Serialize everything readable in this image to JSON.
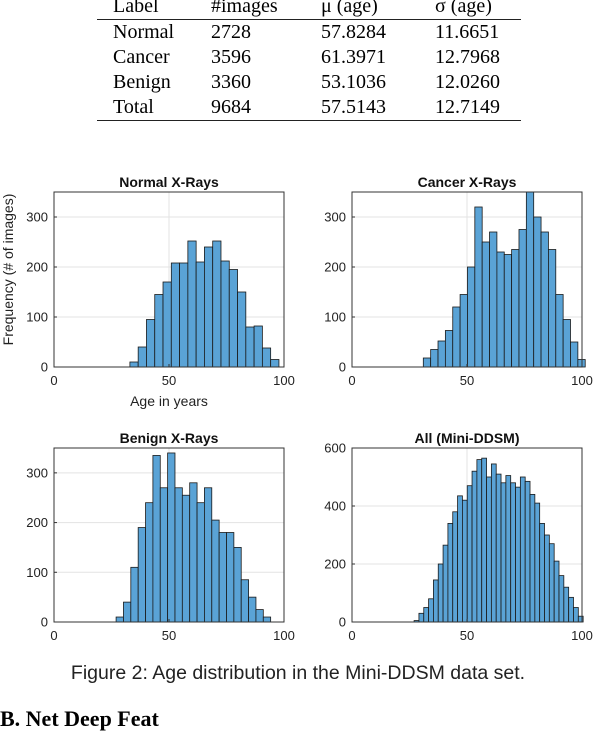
{
  "table": {
    "headers": [
      "Label",
      "#images",
      "μ (age)",
      "σ (age)"
    ],
    "rows": [
      [
        "Normal",
        "2728",
        "57.8284",
        "11.6651"
      ],
      [
        "Cancer",
        "3596",
        "61.3971",
        "12.7968"
      ],
      [
        "Benign",
        "3360",
        "53.1036",
        "12.0260"
      ],
      [
        "Total",
        "9684",
        "57.5143",
        "12.7149"
      ]
    ]
  },
  "caption": "Figure 2: Age distribution in the Mini-DDSM data set.",
  "next_heading": "B. Net Deep Feat",
  "colors": {
    "bar_fill": "#5aa3d6",
    "bar_edge": "#1a1a1a",
    "grid": "#e3e3e3",
    "axis": "#333333"
  },
  "chart_data": [
    {
      "type": "bar",
      "title": "Normal X-Rays",
      "xlabel": "Age in years",
      "ylabel": "Frequency (# of images)",
      "xlim": [
        0,
        100
      ],
      "ylim": [
        0,
        350
      ],
      "xticks": [
        0,
        50,
        100
      ],
      "yticks": [
        0,
        100,
        200,
        300
      ],
      "grid": true,
      "bin_start": 33,
      "bin_width": 3.6,
      "values": [
        10,
        40,
        95,
        145,
        170,
        208,
        208,
        252,
        210,
        240,
        252,
        212,
        195,
        150,
        80,
        82,
        38,
        15
      ]
    },
    {
      "type": "bar",
      "title": "Cancer X-Rays",
      "xlabel": "",
      "ylabel": "",
      "xlim": [
        0,
        100
      ],
      "ylim": [
        0,
        350
      ],
      "xticks": [
        0,
        50,
        100
      ],
      "yticks": [
        0,
        100,
        200,
        300
      ],
      "grid": true,
      "bin_start": 31,
      "bin_width": 3.2,
      "values": [
        18,
        35,
        52,
        73,
        120,
        145,
        200,
        320,
        250,
        270,
        230,
        225,
        235,
        275,
        350,
        300,
        270,
        235,
        145,
        95,
        50,
        15
      ]
    },
    {
      "type": "bar",
      "title": "Benign X-Rays",
      "xlabel": "",
      "ylabel": "",
      "xlim": [
        0,
        100
      ],
      "ylim": [
        0,
        350
      ],
      "xticks": [
        0,
        50,
        100
      ],
      "yticks": [
        0,
        100,
        200,
        300
      ],
      "grid": true,
      "bin_start": 27,
      "bin_width": 3.2,
      "values": [
        10,
        40,
        110,
        190,
        240,
        335,
        270,
        340,
        270,
        255,
        280,
        240,
        270,
        205,
        180,
        180,
        150,
        85,
        50,
        25,
        10
      ]
    },
    {
      "type": "bar",
      "title": "All (Mini-DDSM)",
      "xlabel": "",
      "ylabel": "",
      "xlim": [
        0,
        100
      ],
      "ylim": [
        0,
        600
      ],
      "xticks": [
        0,
        50,
        100
      ],
      "yticks": [
        0,
        200,
        400,
        600
      ],
      "grid": true,
      "bin_start": 27,
      "bin_width": 2.1,
      "values": [
        5,
        30,
        50,
        80,
        145,
        200,
        265,
        340,
        380,
        435,
        420,
        470,
        520,
        560,
        565,
        500,
        545,
        510,
        480,
        505,
        480,
        465,
        500,
        485,
        440,
        410,
        340,
        300,
        270,
        210,
        160,
        120,
        85,
        50,
        20
      ]
    }
  ]
}
